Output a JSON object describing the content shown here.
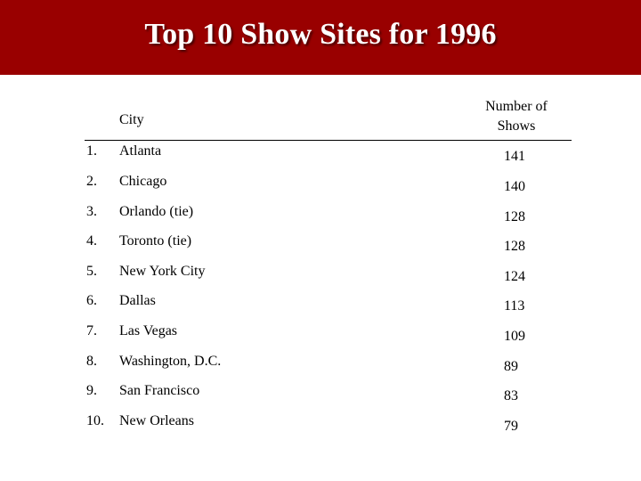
{
  "slide": {
    "title": "Top 10 Show Sites for 1996"
  },
  "table": {
    "header_city": "City",
    "header_count_line1": "Number of",
    "header_count_line2": "Shows",
    "rows": [
      {
        "rank": "1.",
        "city": "Atlanta",
        "shows": "141"
      },
      {
        "rank": "2.",
        "city": "Chicago",
        "shows": "140"
      },
      {
        "rank": "3.",
        "city": "Orlando (tie)",
        "shows": "128"
      },
      {
        "rank": "4.",
        "city": "Toronto (tie)",
        "shows": "128"
      },
      {
        "rank": "5.",
        "city": "New York City",
        "shows": "124"
      },
      {
        "rank": "6.",
        "city": "Dallas",
        "shows": "113"
      },
      {
        "rank": "7.",
        "city": "Las Vegas",
        "shows": "109"
      },
      {
        "rank": "8.",
        "city": "Washington, D.C.",
        "shows": "89"
      },
      {
        "rank": "9.",
        "city": "San Francisco",
        "shows": "83"
      },
      {
        "rank": "10.",
        "city": "New Orleans",
        "shows": "79"
      }
    ]
  },
  "colors": {
    "banner": "#990000",
    "title_text": "#ffffff"
  }
}
